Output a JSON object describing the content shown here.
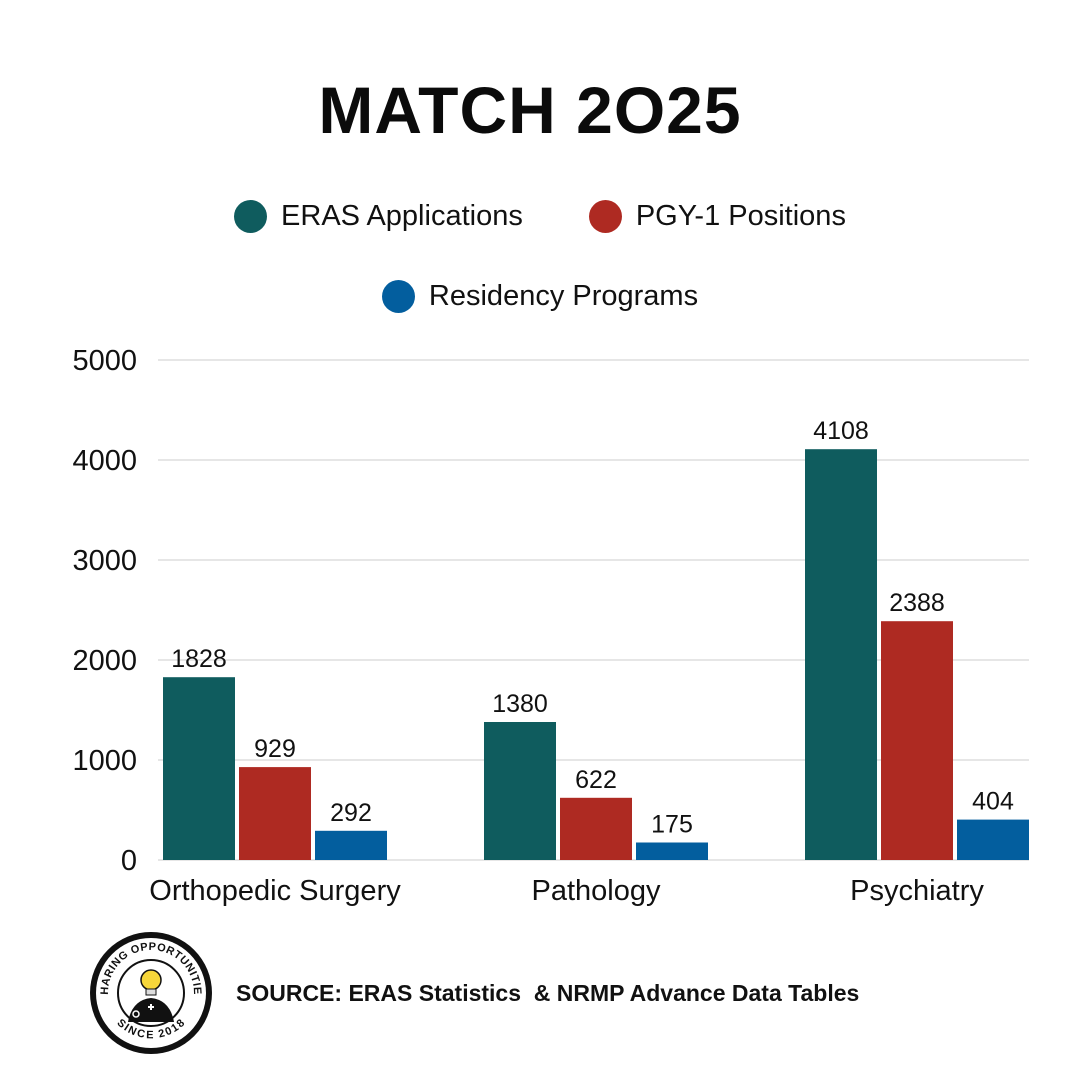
{
  "title": "MATCH 2O25",
  "colors": {
    "eras": "#0f5c5e",
    "pgy": "#ae2a22",
    "programs": "#035e9e",
    "grid": "#cccccc"
  },
  "chart_data": {
    "type": "bar",
    "title": "MATCH 2O25",
    "xlabel": "",
    "ylabel": "",
    "categories": [
      "Orthopedic Surgery",
      "Pathology",
      "Psychiatry"
    ],
    "series": [
      {
        "name": "ERAS Applications",
        "values": [
          1828,
          1380,
          4108
        ],
        "color": "#0f5c5e"
      },
      {
        "name": "PGY-1 Positions",
        "values": [
          929,
          622,
          2388
        ],
        "color": "#ae2a22"
      },
      {
        "name": "Residency Programs",
        "values": [
          292,
          175,
          404
        ],
        "color": "#035e9e"
      }
    ],
    "ylim": [
      0,
      5000
    ],
    "yticks": [
      0,
      1000,
      2000,
      3000,
      4000,
      5000
    ],
    "grid": true,
    "legend": "top"
  },
  "legend": [
    {
      "label": "ERAS Applications",
      "color": "#0f5c5e"
    },
    {
      "label": "PGY-1 Positions",
      "color": "#ae2a22"
    },
    {
      "label": "Residency Programs",
      "color": "#035e9e"
    }
  ],
  "logo": {
    "top_text": "SHARING OPPORTUNITIES",
    "bottom_text": "SINCE 2018"
  },
  "source": "SOURCE: ERAS Statistics  & NRMP Advance Data Tables"
}
